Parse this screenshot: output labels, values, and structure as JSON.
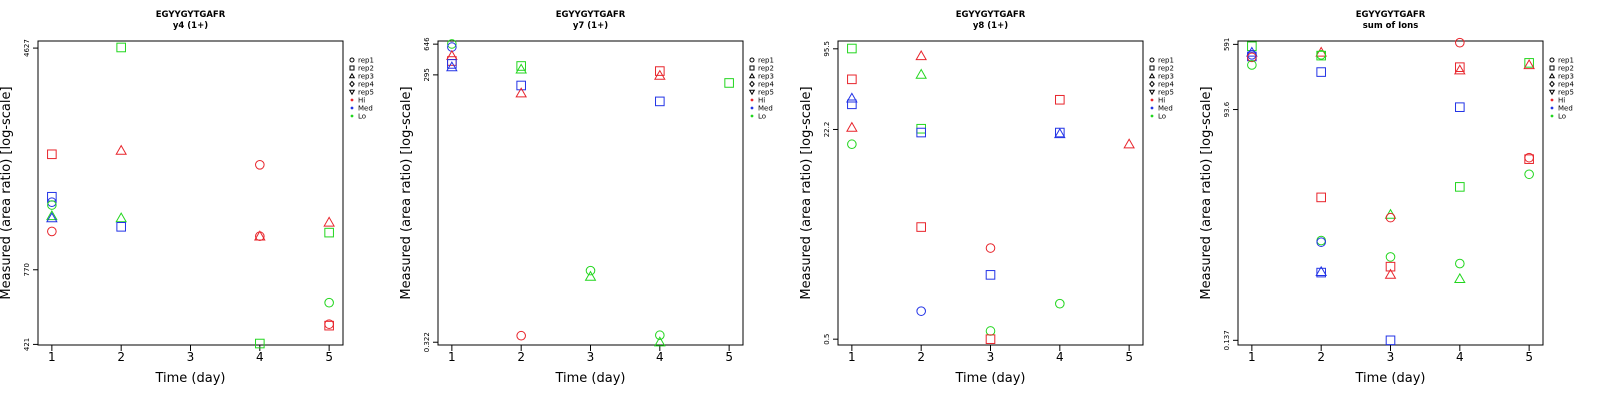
{
  "colors": {
    "Hi": "#e8242b",
    "Med": "#2233e6",
    "Lo": "#22d61e"
  },
  "chart_data": [
    {
      "type": "scatter",
      "title": "EGYYGYTGAFR",
      "subtitle": "y4 (1+)",
      "xlabel": "Time (day)",
      "ylabel": "Measured (area ratio) [log-scale]",
      "yscale": "log",
      "xlim": [
        0.8,
        5.2
      ],
      "ylim": [
        419,
        4900
      ],
      "x_ticks": [
        "1",
        "2",
        "3",
        "4",
        "5"
      ],
      "y_ticks": [
        "421",
        "770",
        "4627"
      ],
      "y_tick_values": [
        421,
        770,
        4627
      ],
      "grid": false,
      "legend_position": "right",
      "legend": [
        {
          "label": "rep1",
          "marker": "circle"
        },
        {
          "label": "rep2",
          "marker": "square"
        },
        {
          "label": "rep3",
          "marker": "triangle-up"
        },
        {
          "label": "rep4",
          "marker": "diamond"
        },
        {
          "label": "rep5",
          "marker": "triangle-down"
        },
        {
          "label": "Hi",
          "marker": "dot",
          "color": "Hi"
        },
        {
          "label": "Med",
          "marker": "dot",
          "color": "Med"
        },
        {
          "label": "Lo",
          "marker": "dot",
          "color": "Lo"
        }
      ],
      "points": [
        {
          "x": 1,
          "y": 1960,
          "shape": "square",
          "group": "Hi"
        },
        {
          "x": 1,
          "y": 1390,
          "shape": "square",
          "group": "Med"
        },
        {
          "x": 1,
          "y": 1330,
          "shape": "circle",
          "group": "Med"
        },
        {
          "x": 1,
          "y": 1300,
          "shape": "circle",
          "group": "Lo"
        },
        {
          "x": 1,
          "y": 1190,
          "shape": "triangle-up",
          "group": "Lo"
        },
        {
          "x": 1,
          "y": 1170,
          "shape": "triangle-up",
          "group": "Med"
        },
        {
          "x": 1,
          "y": 1050,
          "shape": "circle",
          "group": "Hi"
        },
        {
          "x": 2,
          "y": 4650,
          "shape": "square",
          "group": "Lo"
        },
        {
          "x": 2,
          "y": 2020,
          "shape": "triangle-up",
          "group": "Hi"
        },
        {
          "x": 2,
          "y": 1170,
          "shape": "triangle-up",
          "group": "Lo"
        },
        {
          "x": 2,
          "y": 1090,
          "shape": "square",
          "group": "Med"
        },
        {
          "x": 4,
          "y": 1800,
          "shape": "circle",
          "group": "Hi"
        },
        {
          "x": 4,
          "y": 1010,
          "shape": "circle",
          "group": "Hi"
        },
        {
          "x": 4,
          "y": 1010,
          "shape": "triangle-up",
          "group": "Hi"
        },
        {
          "x": 4,
          "y": 424,
          "shape": "square",
          "group": "Lo"
        },
        {
          "x": 5,
          "y": 1130,
          "shape": "triangle-up",
          "group": "Hi"
        },
        {
          "x": 5,
          "y": 1040,
          "shape": "square",
          "group": "Lo"
        },
        {
          "x": 5,
          "y": 590,
          "shape": "circle",
          "group": "Lo"
        },
        {
          "x": 5,
          "y": 496,
          "shape": "circle",
          "group": "Hi"
        },
        {
          "x": 5,
          "y": 490,
          "shape": "square",
          "group": "Hi"
        }
      ]
    },
    {
      "type": "scatter",
      "title": "EGYYGYTGAFR",
      "subtitle": "y7 (1+)",
      "xlabel": "Time (day)",
      "ylabel": "Measured (area ratio) [log-scale]",
      "yscale": "log",
      "xlim": [
        0.8,
        5.2
      ],
      "ylim": [
        0.3,
        700
      ],
      "x_ticks": [
        "1",
        "2",
        "3",
        "4",
        "5"
      ],
      "y_ticks": [
        "0.322",
        "295",
        "646"
      ],
      "y_tick_values": [
        0.322,
        295,
        646
      ],
      "grid": false,
      "legend_position": "right",
      "legend": [
        {
          "label": "rep1",
          "marker": "circle"
        },
        {
          "label": "rep2",
          "marker": "square"
        },
        {
          "label": "rep3",
          "marker": "triangle-up"
        },
        {
          "label": "rep4",
          "marker": "diamond"
        },
        {
          "label": "rep5",
          "marker": "triangle-down"
        },
        {
          "label": "Hi",
          "marker": "dot",
          "color": "Hi"
        },
        {
          "label": "Med",
          "marker": "dot",
          "color": "Med"
        },
        {
          "label": "Lo",
          "marker": "dot",
          "color": "Lo"
        }
      ],
      "points": [
        {
          "x": 1,
          "y": 650,
          "shape": "circle",
          "group": "Lo"
        },
        {
          "x": 1,
          "y": 600,
          "shape": "circle",
          "group": "Med"
        },
        {
          "x": 1,
          "y": 480,
          "shape": "triangle-up",
          "group": "Hi"
        },
        {
          "x": 1,
          "y": 420,
          "shape": "square",
          "group": "Hi"
        },
        {
          "x": 1,
          "y": 390,
          "shape": "square",
          "group": "Med"
        },
        {
          "x": 1,
          "y": 360,
          "shape": "triangle-up",
          "group": "Med"
        },
        {
          "x": 2,
          "y": 370,
          "shape": "square",
          "group": "Lo"
        },
        {
          "x": 2,
          "y": 340,
          "shape": "triangle-up",
          "group": "Lo"
        },
        {
          "x": 2,
          "y": 225,
          "shape": "square",
          "group": "Med"
        },
        {
          "x": 2,
          "y": 185,
          "shape": "triangle-up",
          "group": "Hi"
        },
        {
          "x": 2,
          "y": 0.38,
          "shape": "circle",
          "group": "Hi"
        },
        {
          "x": 3,
          "y": 2.0,
          "shape": "circle",
          "group": "Lo"
        },
        {
          "x": 3,
          "y": 1.72,
          "shape": "triangle-up",
          "group": "Lo"
        },
        {
          "x": 4,
          "y": 325,
          "shape": "square",
          "group": "Hi"
        },
        {
          "x": 4,
          "y": 290,
          "shape": "triangle-up",
          "group": "Hi"
        },
        {
          "x": 4,
          "y": 150,
          "shape": "square",
          "group": "Med"
        },
        {
          "x": 4,
          "y": 0.385,
          "shape": "circle",
          "group": "Lo"
        },
        {
          "x": 4,
          "y": 0.322,
          "shape": "triangle-up",
          "group": "Lo"
        },
        {
          "x": 5,
          "y": 240,
          "shape": "square",
          "group": "Lo"
        }
      ]
    },
    {
      "type": "scatter",
      "title": "EGYYGYTGAFR",
      "subtitle": "y8 (1+)",
      "xlabel": "Time (day)",
      "ylabel": "Measured (area ratio) [log-scale]",
      "yscale": "log",
      "xlim": [
        0.8,
        5.2
      ],
      "ylim": [
        0.45,
        110
      ],
      "x_ticks": [
        "1",
        "2",
        "3",
        "4",
        "5"
      ],
      "y_ticks": [
        "0.5",
        "22.2",
        "95.5"
      ],
      "y_tick_values": [
        0.5,
        22.2,
        95.5
      ],
      "grid": false,
      "legend_position": "right",
      "legend": [
        {
          "label": "rep1",
          "marker": "circle"
        },
        {
          "label": "rep2",
          "marker": "square"
        },
        {
          "label": "rep3",
          "marker": "triangle-up"
        },
        {
          "label": "rep4",
          "marker": "diamond"
        },
        {
          "label": "rep5",
          "marker": "triangle-down"
        },
        {
          "label": "Hi",
          "marker": "dot",
          "color": "Hi"
        },
        {
          "label": "Med",
          "marker": "dot",
          "color": "Med"
        },
        {
          "label": "Lo",
          "marker": "dot",
          "color": "Lo"
        }
      ],
      "points": [
        {
          "x": 1,
          "y": 96,
          "shape": "square",
          "group": "Lo"
        },
        {
          "x": 1,
          "y": 55,
          "shape": "square",
          "group": "Hi"
        },
        {
          "x": 1,
          "y": 39,
          "shape": "triangle-up",
          "group": "Med"
        },
        {
          "x": 1,
          "y": 35,
          "shape": "square",
          "group": "Med"
        },
        {
          "x": 1,
          "y": 23,
          "shape": "triangle-up",
          "group": "Hi"
        },
        {
          "x": 1,
          "y": 17,
          "shape": "circle",
          "group": "Lo"
        },
        {
          "x": 2,
          "y": 84,
          "shape": "triangle-up",
          "group": "Hi"
        },
        {
          "x": 2,
          "y": 60,
          "shape": "triangle-up",
          "group": "Lo"
        },
        {
          "x": 2,
          "y": 22.5,
          "shape": "square",
          "group": "Lo"
        },
        {
          "x": 2,
          "y": 21,
          "shape": "square",
          "group": "Med"
        },
        {
          "x": 2,
          "y": 3.8,
          "shape": "square",
          "group": "Hi"
        },
        {
          "x": 2,
          "y": 0.83,
          "shape": "circle",
          "group": "Med"
        },
        {
          "x": 3,
          "y": 2.6,
          "shape": "circle",
          "group": "Hi"
        },
        {
          "x": 3,
          "y": 1.6,
          "shape": "square",
          "group": "Med"
        },
        {
          "x": 3,
          "y": 0.58,
          "shape": "circle",
          "group": "Lo"
        },
        {
          "x": 3,
          "y": 0.5,
          "shape": "square",
          "group": "Hi"
        },
        {
          "x": 4,
          "y": 38,
          "shape": "square",
          "group": "Hi"
        },
        {
          "x": 4,
          "y": 21,
          "shape": "square",
          "group": "Med"
        },
        {
          "x": 4,
          "y": 20.5,
          "shape": "triangle-up",
          "group": "Med"
        },
        {
          "x": 4,
          "y": 0.95,
          "shape": "circle",
          "group": "Lo"
        },
        {
          "x": 5,
          "y": 17,
          "shape": "triangle-up",
          "group": "Hi"
        }
      ]
    },
    {
      "type": "scatter",
      "title": "EGYYGYTGAFR",
      "subtitle": "sum of Ions",
      "xlabel": "Time (day)",
      "ylabel": "Measured (area ratio) [log-scale]",
      "yscale": "log",
      "xlim": [
        0.8,
        5.2
      ],
      "ylim": [
        0.12,
        650
      ],
      "x_ticks": [
        "1",
        "2",
        "3",
        "4",
        "5"
      ],
      "y_ticks": [
        "0.137",
        "93.6",
        "591"
      ],
      "y_tick_values": [
        0.137,
        93.6,
        591
      ],
      "grid": false,
      "legend_position": "right",
      "legend": [
        {
          "label": "rep1",
          "marker": "circle"
        },
        {
          "label": "rep2",
          "marker": "square"
        },
        {
          "label": "rep3",
          "marker": "triangle-up"
        },
        {
          "label": "rep4",
          "marker": "diamond"
        },
        {
          "label": "rep5",
          "marker": "triangle-down"
        },
        {
          "label": "Hi",
          "marker": "dot",
          "color": "Hi"
        },
        {
          "label": "Med",
          "marker": "dot",
          "color": "Med"
        },
        {
          "label": "Lo",
          "marker": "dot",
          "color": "Lo"
        }
      ],
      "points": [
        {
          "x": 1,
          "y": 560,
          "shape": "square",
          "group": "Lo"
        },
        {
          "x": 1,
          "y": 470,
          "shape": "triangle-up",
          "group": "Med"
        },
        {
          "x": 1,
          "y": 440,
          "shape": "circle",
          "group": "Med"
        },
        {
          "x": 1,
          "y": 420,
          "shape": "square",
          "group": "Med"
        },
        {
          "x": 1,
          "y": 410,
          "shape": "circle",
          "group": "Hi"
        },
        {
          "x": 1,
          "y": 330,
          "shape": "circle",
          "group": "Lo"
        },
        {
          "x": 2,
          "y": 470,
          "shape": "triangle-up",
          "group": "Hi"
        },
        {
          "x": 2,
          "y": 440,
          "shape": "circle",
          "group": "Lo"
        },
        {
          "x": 2,
          "y": 430,
          "shape": "square",
          "group": "Lo"
        },
        {
          "x": 2,
          "y": 270,
          "shape": "square",
          "group": "Med"
        },
        {
          "x": 2,
          "y": 7.8,
          "shape": "square",
          "group": "Hi"
        },
        {
          "x": 2,
          "y": 2.3,
          "shape": "circle",
          "group": "Lo"
        },
        {
          "x": 2,
          "y": 2.2,
          "shape": "circle",
          "group": "Med"
        },
        {
          "x": 2,
          "y": 0.95,
          "shape": "triangle-up",
          "group": "Med"
        },
        {
          "x": 2,
          "y": 0.93,
          "shape": "square",
          "group": "Med"
        },
        {
          "x": 3,
          "y": 4.8,
          "shape": "triangle-up",
          "group": "Lo"
        },
        {
          "x": 3,
          "y": 4.4,
          "shape": "circle",
          "group": "Hi"
        },
        {
          "x": 3,
          "y": 1.45,
          "shape": "circle",
          "group": "Lo"
        },
        {
          "x": 3,
          "y": 1.1,
          "shape": "square",
          "group": "Hi"
        },
        {
          "x": 3,
          "y": 0.88,
          "shape": "triangle-up",
          "group": "Hi"
        },
        {
          "x": 3,
          "y": 0.137,
          "shape": "square",
          "group": "Med"
        },
        {
          "x": 4,
          "y": 620,
          "shape": "circle",
          "group": "Hi"
        },
        {
          "x": 4,
          "y": 310,
          "shape": "square",
          "group": "Hi"
        },
        {
          "x": 4,
          "y": 285,
          "shape": "triangle-up",
          "group": "Hi"
        },
        {
          "x": 4,
          "y": 100,
          "shape": "square",
          "group": "Med"
        },
        {
          "x": 4,
          "y": 10.5,
          "shape": "square",
          "group": "Lo"
        },
        {
          "x": 4,
          "y": 1.2,
          "shape": "circle",
          "group": "Lo"
        },
        {
          "x": 4,
          "y": 0.78,
          "shape": "triangle-up",
          "group": "Lo"
        },
        {
          "x": 5,
          "y": 350,
          "shape": "square",
          "group": "Lo"
        },
        {
          "x": 5,
          "y": 330,
          "shape": "triangle-up",
          "group": "Hi"
        },
        {
          "x": 5,
          "y": 24,
          "shape": "circle",
          "group": "Hi"
        },
        {
          "x": 5,
          "y": 23,
          "shape": "square",
          "group": "Hi"
        },
        {
          "x": 5,
          "y": 15,
          "shape": "circle",
          "group": "Lo"
        }
      ]
    }
  ]
}
